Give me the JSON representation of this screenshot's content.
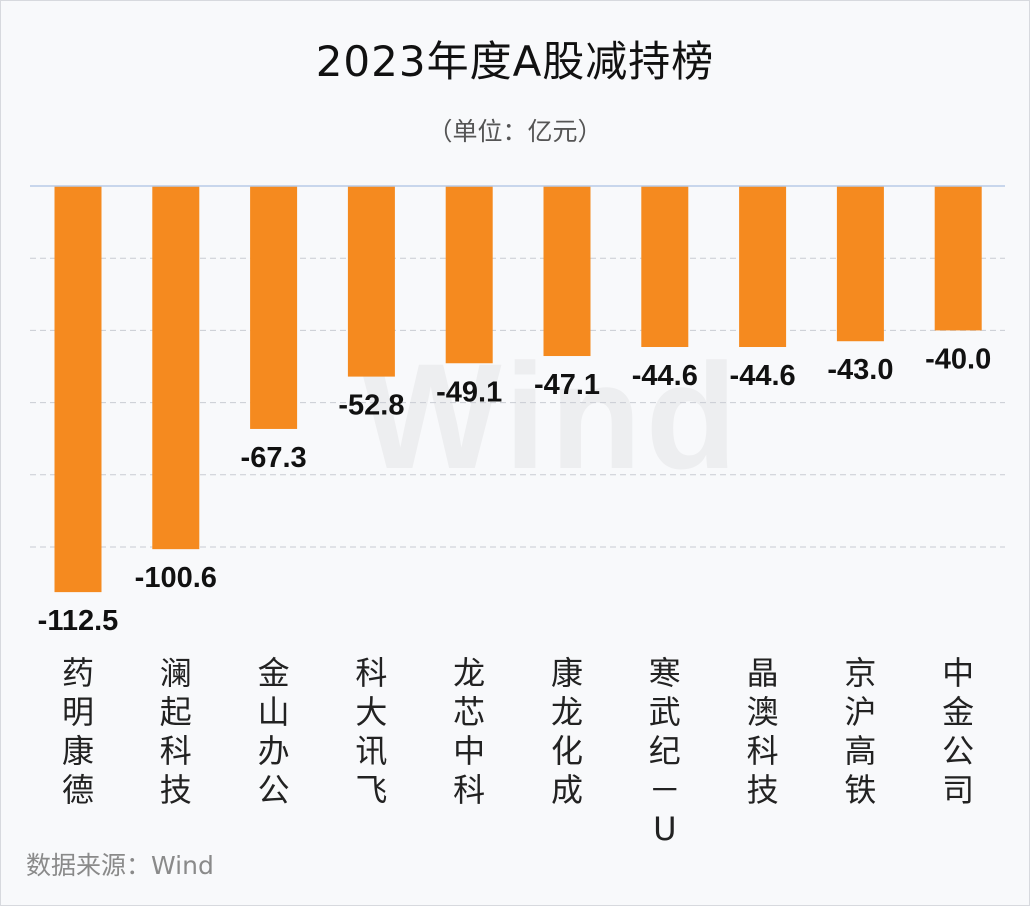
{
  "title": "2023年度A股减持榜",
  "subtitle": "（单位：亿元）",
  "source": "数据来源：Wind",
  "watermark": "Wind",
  "colors": {
    "bar": "#f58a1f",
    "label": "#111111",
    "grid": "#c9ccd3",
    "axis": "#b8cbe8"
  },
  "chart_data": {
    "type": "bar",
    "title": "2023年度A股减持榜",
    "subtitle": "（单位：亿元）",
    "categories": [
      "药明康德",
      "澜起科技",
      "金山办公",
      "科大讯飞",
      "龙芯中科",
      "康龙化成",
      "寒武纪－U",
      "晶澳科技",
      "京沪高铁",
      "中金公司"
    ],
    "values": [
      -112.5,
      -100.6,
      -67.3,
      -52.8,
      -49.1,
      -47.1,
      -44.6,
      -44.6,
      -43.0,
      -40.0
    ],
    "value_labels": [
      "-112.5",
      "-100.6",
      "-67.3",
      "-52.8",
      "-49.1",
      "-47.1",
      "-44.6",
      "-44.6",
      "-43.0",
      "-40.0"
    ],
    "ylim": [
      -120,
      0
    ],
    "grid": true,
    "gridlines": [
      -20,
      -40,
      -60,
      -80,
      -100
    ],
    "legend": "none"
  }
}
